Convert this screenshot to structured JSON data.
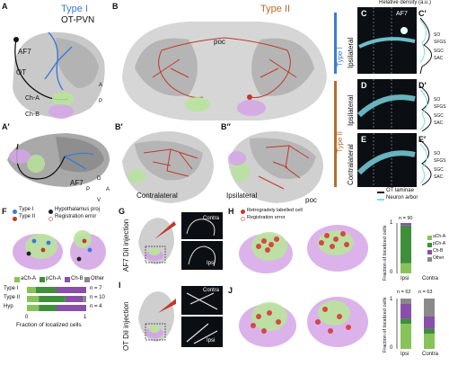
{
  "panels": {
    "A": "A",
    "B": "B",
    "A1": "A′",
    "B1": "B′",
    "B2": "B″",
    "C": "C",
    "C1": "C′",
    "D": "D",
    "D1": "D′",
    "E": "E",
    "E1": "E′",
    "F": "F",
    "G": "G",
    "H": "H",
    "I": "I",
    "J": "J"
  },
  "panelA": {
    "title_type": "Type I",
    "title_cell": "OT-PVN",
    "labels": {
      "af7": "AF7",
      "ot": "OT",
      "cha": "Ch-A",
      "chb": "Ch-B",
      "a": "A",
      "p": "P"
    }
  },
  "panelB": {
    "title": "Type II",
    "poc": "poc"
  },
  "panelA1": {
    "af7": "AF7",
    "d": "D",
    "v": "V",
    "a": "A",
    "p": "P"
  },
  "panelB1": {
    "label": "Contralateral"
  },
  "panelB2": {
    "label": "Ipsilateral",
    "poc": "poc"
  },
  "micro": {
    "c_side": "Ipsilateral",
    "c_type": "Type I",
    "af7": "AF7",
    "d_side": "Ipsilateral",
    "e_side": "Contralateral",
    "de_type": "Type II",
    "density_header": "Relative density (a.u.)",
    "layers": [
      "SO",
      "SFGS",
      "SGC",
      "SAC"
    ],
    "legend_ot": "OT laminae",
    "legend_arbor": "Neuron arbor"
  },
  "panelF": {
    "legend": [
      "Type I",
      "Type II",
      "Hypothalamus proj",
      "Registration error"
    ],
    "regions": [
      "aCh-A",
      "pCh-A",
      "Ch-B",
      "Other"
    ],
    "rows": [
      {
        "label": "Type I",
        "n": "n = 7",
        "values": [
          0.15,
          0.35,
          0.5,
          0.0
        ]
      },
      {
        "label": "Type II",
        "n": "n = 10",
        "values": [
          0.2,
          0.45,
          0.3,
          0.05
        ]
      },
      {
        "label": "Hyp",
        "n": "n = 4",
        "values": [
          0.2,
          0.3,
          0.5,
          0.0
        ]
      }
    ],
    "xlabel": "Fraction of localized cells",
    "xticks": [
      "0",
      "1"
    ]
  },
  "panelG": {
    "label": "AF7 DiI injection",
    "contra": "Contra",
    "ipsi": "Ipsi"
  },
  "panelI": {
    "label": "OT DiI injection",
    "contra": "Contra",
    "ipsi": "Ipsi"
  },
  "panelH": {
    "legend": [
      "Retrogradely labelled cell",
      "Registration error"
    ],
    "chart": {
      "n": [
        "n = 90",
        ""
      ],
      "categories": [
        "Ipsi",
        "Contra"
      ],
      "stack": [
        {
          "name": "aCh-A",
          "values": [
            0.2,
            0
          ]
        },
        {
          "name": "pCh-A",
          "values": [
            0.75,
            0
          ]
        },
        {
          "name": "Ch-B",
          "values": [
            0.05,
            0
          ]
        },
        {
          "name": "Other",
          "values": [
            0.0,
            0
          ]
        }
      ],
      "ylabel": "Fraction of localized cells",
      "yticks": [
        "0",
        "1"
      ]
    }
  },
  "panelJ": {
    "chart": {
      "n": [
        "n = 62",
        "n = 63"
      ],
      "categories": [
        "Ipsi",
        "Contra"
      ],
      "stack": [
        {
          "name": "aCh-A",
          "values": [
            0.5,
            0.3
          ]
        },
        {
          "name": "pCh-A",
          "values": [
            0.1,
            0.1
          ]
        },
        {
          "name": "Ch-B",
          "values": [
            0.3,
            0.25
          ]
        },
        {
          "name": "Other",
          "values": [
            0.1,
            0.35
          ]
        }
      ],
      "ylabel": "Fraction of localized cells",
      "yticks": [
        "0",
        "1"
      ]
    }
  },
  "colors": {
    "type1": "#3a7bd5",
    "type2": "#c0392b",
    "hyp": "#222222",
    "acha": "#88c35a",
    "pcha": "#3f8f3a",
    "chb": "#8a4fa8",
    "other": "#8a8a8a",
    "green_area": "#b9e39c",
    "purple_area": "#d5a6e6",
    "cyan": "#7fdde8"
  }
}
